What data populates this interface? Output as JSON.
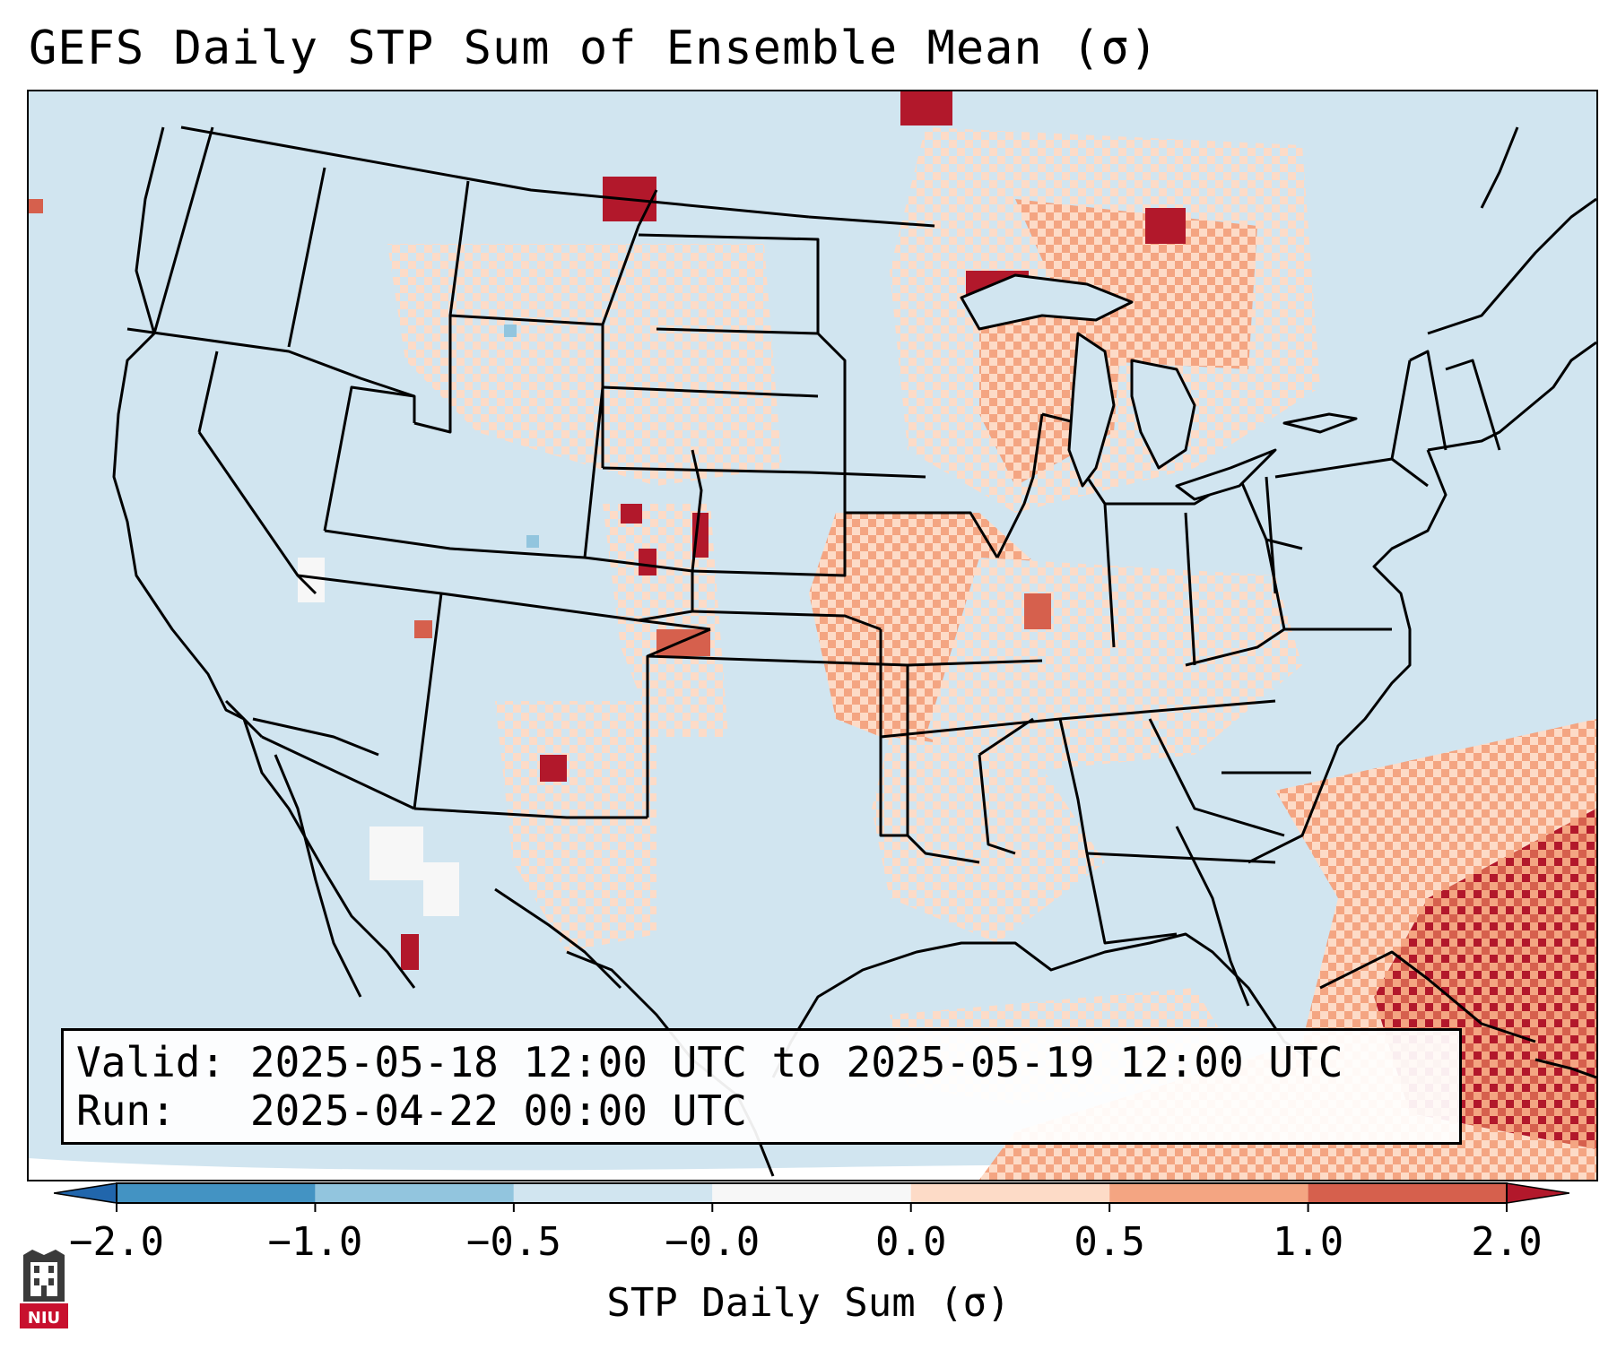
{
  "title": "GEFS Daily STP Sum of Ensemble Mean (σ)",
  "info": {
    "valid_label": "Valid:",
    "valid_value": "2025-05-18 12:00 UTC to 2025-05-19 12:00 UTC",
    "run_label": "Run:",
    "run_value": "2025-04-22 00:00 UTC"
  },
  "colorbar": {
    "label": "STP Daily Sum (σ)",
    "ticks": [
      "−2.0",
      "−1.0",
      "−0.5",
      "−0.0",
      "0.0",
      "0.5",
      "1.0",
      "2.0"
    ],
    "colors": [
      "#4393c3",
      "#92c5de",
      "#d1e5f0",
      "#f7f7f7",
      "#fddbc7",
      "#f4a582",
      "#d6604d",
      "#b2182b"
    ],
    "extend_low_color": "#2166ac",
    "extend_high_color": "#b2182b"
  },
  "map": {
    "background_color": "#d1e5f0",
    "regions": [
      {
        "name": "northern-plains-hotspot",
        "level": 3
      },
      {
        "name": "upper-michigan-hotspot",
        "level": 3
      },
      {
        "name": "ontario-hotspot",
        "level": 3
      },
      {
        "name": "colorado-front-range-hotspot",
        "level": 3
      },
      {
        "name": "new-mexico-west-texas-hotspot",
        "level": 3
      },
      {
        "name": "midwest-elevated-zone",
        "level": 2
      },
      {
        "name": "ohio-valley-elevated-zone",
        "level": 2
      },
      {
        "name": "western-atlantic-hotspot",
        "level": 3
      },
      {
        "name": "gulf-of-mexico-elevated-zone",
        "level": 1
      }
    ]
  },
  "logo": {
    "text": "NIU",
    "color": "#c8102e"
  }
}
